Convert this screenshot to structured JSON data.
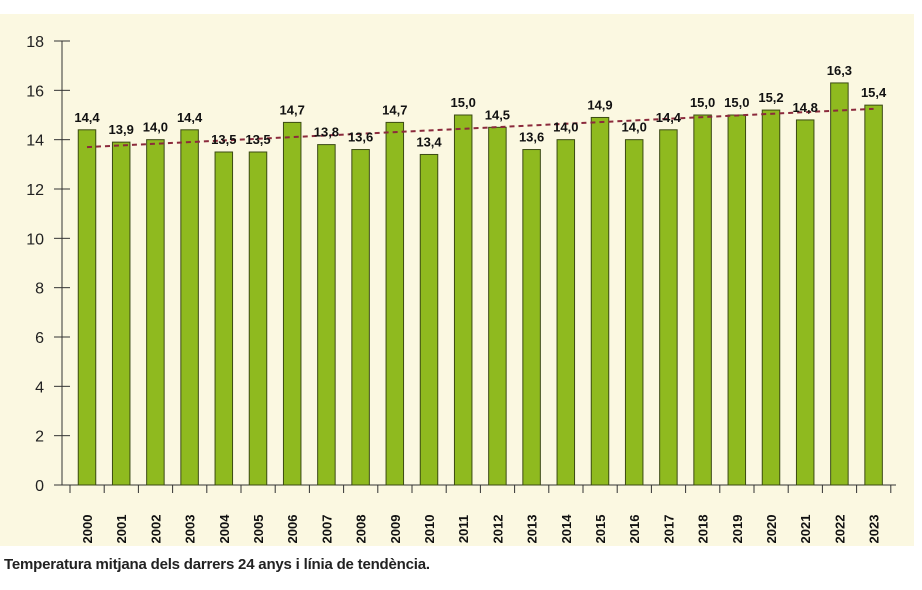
{
  "caption": "Temperatura mitjana dels darrers 24 anys i línia de tendència.",
  "colors": {
    "background": "#fbf8e1",
    "bar_fill": "#8fba1f",
    "bar_stroke": "#3b4a14",
    "trend_line": "#8b2a3c",
    "axis": "#333333"
  },
  "chart_data": {
    "type": "bar",
    "title": "",
    "xlabel": "",
    "ylabel": "",
    "ylim": [
      0,
      18
    ],
    "y_ticks": [
      0,
      2,
      4,
      6,
      8,
      10,
      12,
      14,
      16,
      18
    ],
    "y_tick_labels": [
      "0",
      "2",
      "4",
      "6",
      "8",
      "10",
      "12",
      "14",
      "16",
      "18"
    ],
    "grid": false,
    "categories": [
      "2000",
      "2001",
      "2002",
      "2003",
      "2004",
      "2005",
      "2006",
      "2007",
      "2008",
      "2009",
      "2010",
      "2011",
      "2012",
      "2013",
      "2014",
      "2015",
      "2016",
      "2017",
      "2018",
      "2019",
      "2020",
      "2021",
      "2022",
      "2023"
    ],
    "values": [
      14.4,
      13.9,
      14.0,
      14.4,
      13.5,
      13.5,
      14.7,
      13.8,
      13.6,
      14.7,
      13.4,
      15.0,
      14.5,
      13.6,
      14.0,
      14.9,
      14.0,
      14.4,
      15.0,
      15.0,
      15.2,
      14.8,
      16.3,
      15.4
    ],
    "data_labels": [
      "14,4",
      "13,9",
      "14,0",
      "14,4",
      "13,5",
      "13,5",
      "14,7",
      "13,8",
      "13,6",
      "14,7",
      "13,4",
      "15,0",
      "14,5",
      "13,6",
      "14,0",
      "14,9",
      "14,0",
      "14,4",
      "15,0",
      "15,0",
      "15,2",
      "14,8",
      "16,3",
      "15,4"
    ],
    "trend_line": {
      "style": "dashed",
      "start": {
        "x": "2000",
        "y": 13.7
      },
      "end": {
        "x": "2023",
        "y": 15.25
      }
    }
  }
}
